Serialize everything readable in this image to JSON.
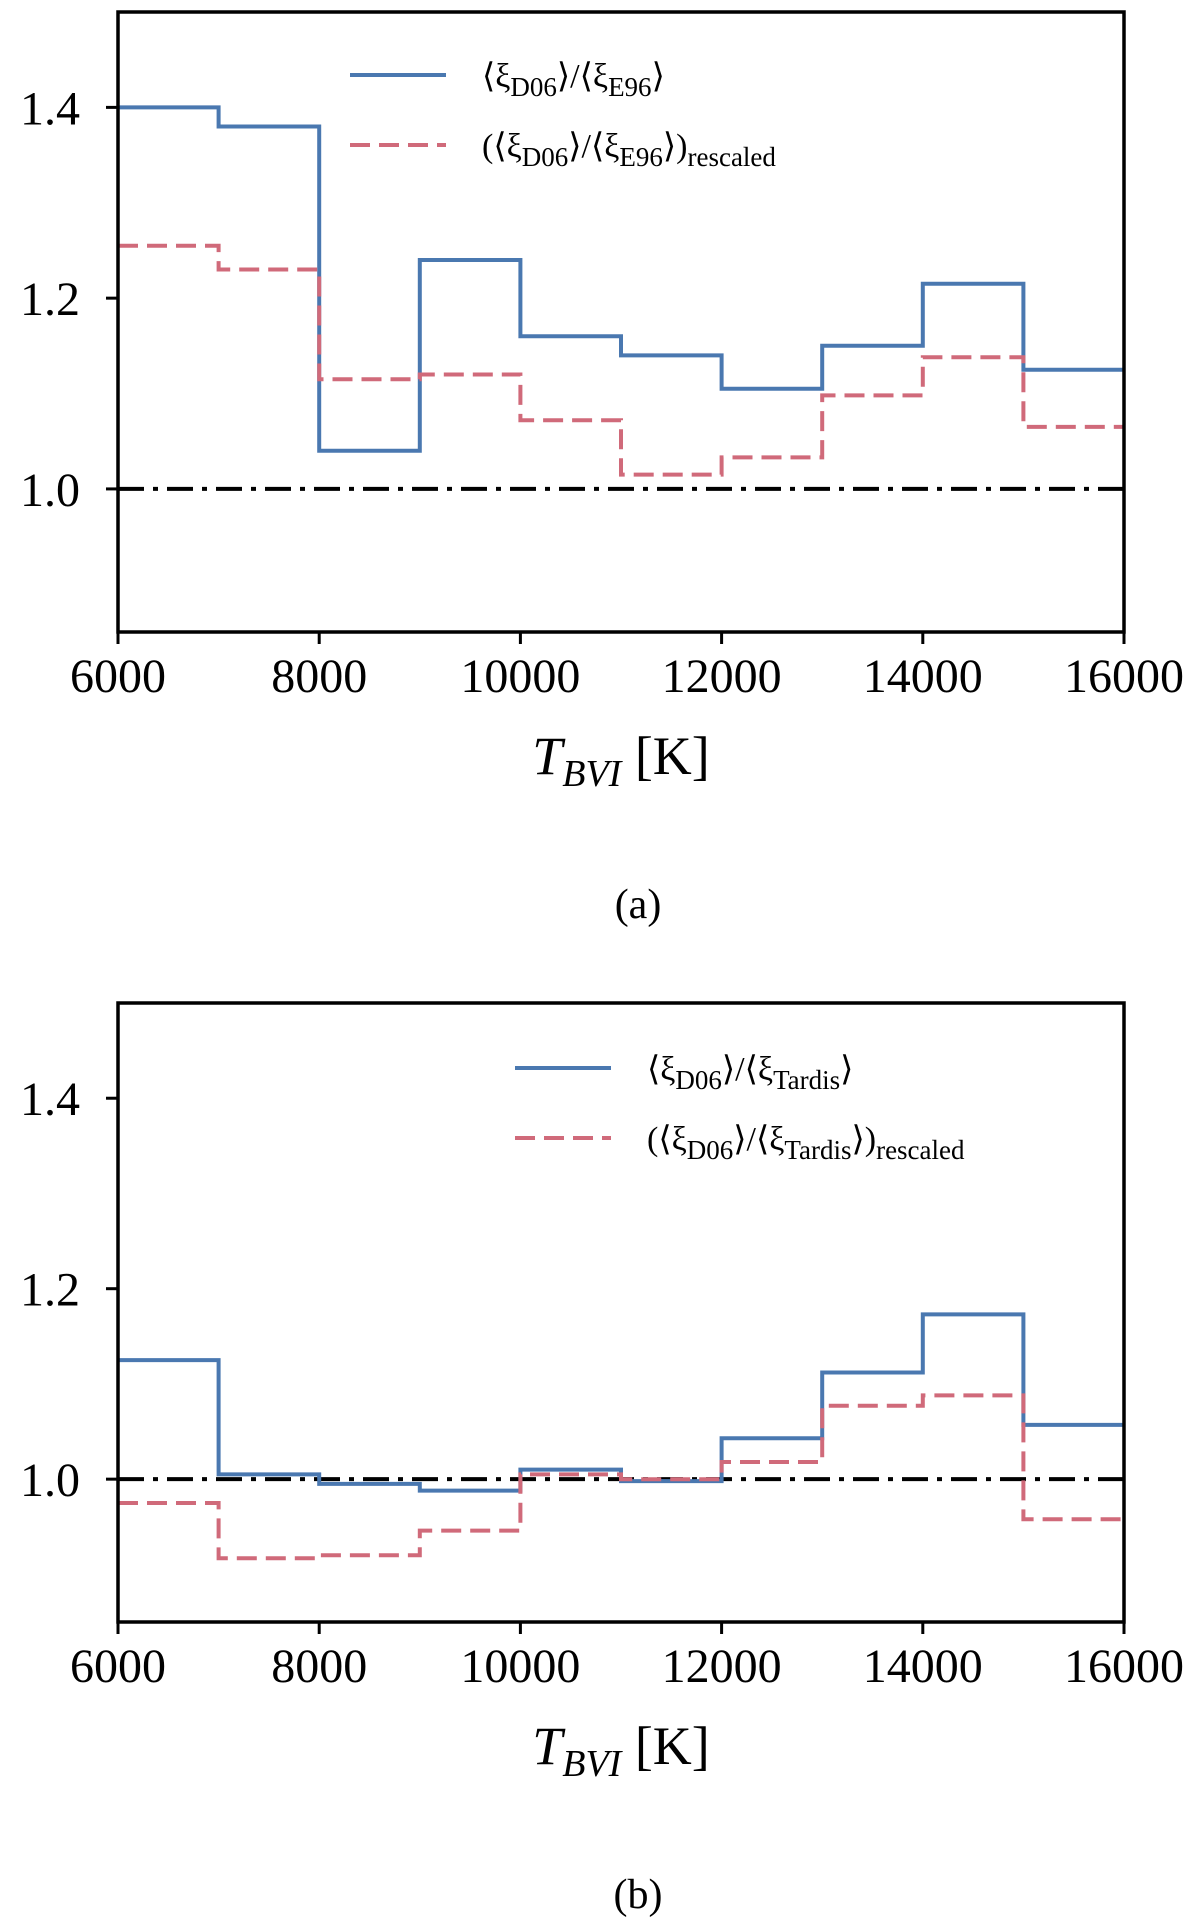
{
  "colors": {
    "blue": "#4a78b0",
    "red": "#d06a7a",
    "ref": "#000000"
  },
  "chart_data": [
    {
      "id": "a",
      "type": "line",
      "step": "post",
      "caption": "(a)",
      "xlabel_main": "T",
      "xlabel_sub": "BVI",
      "xlabel_unit": " [K]",
      "xlim": [
        6000,
        16000
      ],
      "ylim": [
        0.85,
        1.5
      ],
      "xticks": [
        6000,
        8000,
        10000,
        12000,
        14000,
        16000
      ],
      "xtick_labels": [
        "6000",
        "8000",
        "10000",
        "12000",
        "14000",
        "16000"
      ],
      "yticks": [
        1.0,
        1.2,
        1.4
      ],
      "ytick_labels": [
        "1.0",
        "1.2",
        "1.4"
      ],
      "reference_line": 1.0,
      "legend_position": "top-center",
      "bin_edges": [
        6000,
        7000,
        8000,
        9000,
        10000,
        11000,
        12000,
        13000,
        14000,
        15000,
        16000
      ],
      "series": [
        {
          "name": "⟨ξD06⟩/⟨ξE96⟩",
          "main": "⟨ξ",
          "sub1": "D06",
          "mid": "⟩/⟨ξ",
          "sub2": "E96",
          "tail": "⟩",
          "suffix": "",
          "style": "solid",
          "values": [
            1.4,
            1.38,
            1.04,
            1.24,
            1.16,
            1.14,
            1.105,
            1.15,
            1.215,
            1.125
          ]
        },
        {
          "name": "(⟨ξD06⟩/⟨ξE96⟩)rescaled",
          "main": "(⟨ξ",
          "sub1": "D06",
          "mid": "⟩/⟨ξ",
          "sub2": "E96",
          "tail": "⟩)",
          "suffix": "rescaled",
          "style": "dashed",
          "values": [
            1.255,
            1.23,
            1.115,
            1.12,
            1.072,
            1.015,
            1.033,
            1.098,
            1.138,
            1.065
          ]
        }
      ]
    },
    {
      "id": "b",
      "type": "line",
      "step": "post",
      "caption": "(b)",
      "xlabel_main": "T",
      "xlabel_sub": "BVI",
      "xlabel_unit": " [K]",
      "xlim": [
        6000,
        16000
      ],
      "ylim": [
        0.85,
        1.5
      ],
      "xticks": [
        6000,
        8000,
        10000,
        12000,
        14000,
        16000
      ],
      "xtick_labels": [
        "6000",
        "8000",
        "10000",
        "12000",
        "14000",
        "16000"
      ],
      "yticks": [
        1.0,
        1.2,
        1.4
      ],
      "ytick_labels": [
        "1.0",
        "1.2",
        "1.4"
      ],
      "reference_line": 1.0,
      "legend_position": "top-right",
      "bin_edges": [
        6000,
        7000,
        8000,
        9000,
        10000,
        11000,
        12000,
        13000,
        14000,
        15000,
        16000
      ],
      "series": [
        {
          "name": "⟨ξD06⟩/⟨ξTardis⟩",
          "main": "⟨ξ",
          "sub1": "D06",
          "mid": "⟩/⟨ξ",
          "sub2": "Tardis",
          "tail": "⟩",
          "suffix": "",
          "style": "solid",
          "values": [
            1.125,
            1.005,
            0.995,
            0.988,
            1.01,
            0.998,
            1.043,
            1.112,
            1.173,
            1.057
          ]
        },
        {
          "name": "(⟨ξD06⟩/⟨ξTardis⟩)rescaled",
          "main": "(⟨ξ",
          "sub1": "D06",
          "mid": "⟩/⟨ξ",
          "sub2": "Tardis",
          "tail": "⟩)",
          "suffix": "rescaled",
          "style": "dashed",
          "values": [
            0.975,
            0.917,
            0.92,
            0.946,
            1.005,
            1.0,
            1.018,
            1.077,
            1.088,
            0.958
          ]
        }
      ]
    }
  ]
}
